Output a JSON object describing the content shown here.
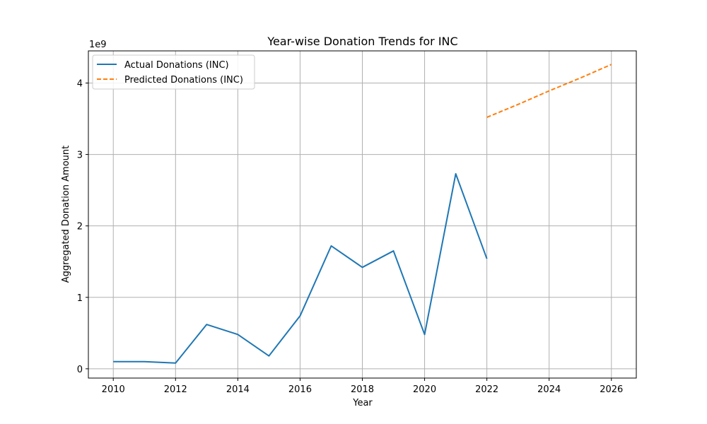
{
  "chart_data": {
    "type": "line",
    "title": "Year-wise Donation Trends for INC",
    "xlabel": "Year",
    "ylabel": "Aggregated Donation Amount",
    "y_offset_label": "1e9",
    "xlim": [
      2009.2,
      2026.8
    ],
    "ylim": [
      -0.13,
      4.45
    ],
    "x_ticks": [
      2010,
      2012,
      2014,
      2016,
      2018,
      2020,
      2022,
      2024,
      2026
    ],
    "y_ticks": [
      0,
      1,
      2,
      3,
      4
    ],
    "grid": true,
    "legend_position": "upper-left",
    "series": [
      {
        "name": "Actual Donations (INC)",
        "color": "#1f77b4",
        "style": "solid",
        "x": [
          2010,
          2011,
          2012,
          2013,
          2014,
          2015,
          2016,
          2017,
          2018,
          2019,
          2020,
          2021,
          2022
        ],
        "y": [
          0.1,
          0.1,
          0.08,
          0.62,
          0.48,
          0.18,
          0.74,
          1.72,
          1.42,
          1.65,
          0.48,
          2.73,
          1.54
        ]
      },
      {
        "name": "Predicted Donations (INC)",
        "color": "#ff7f0e",
        "style": "dashed",
        "x": [
          2022,
          2023,
          2024,
          2025,
          2026
        ],
        "y": [
          3.52,
          3.7,
          3.89,
          4.07,
          4.26
        ]
      }
    ]
  }
}
